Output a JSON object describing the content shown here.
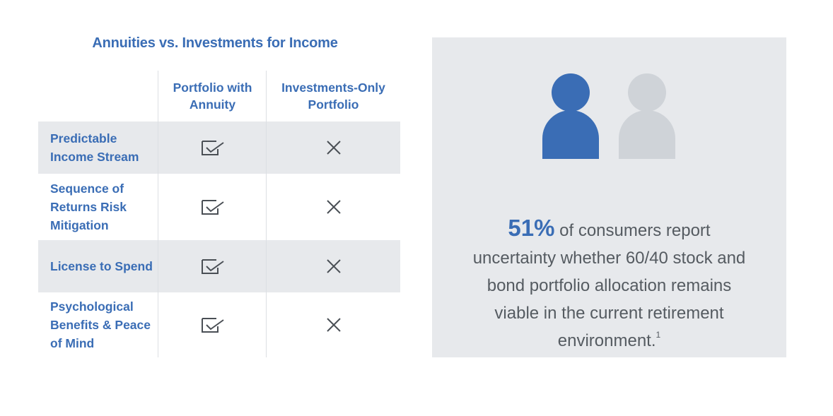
{
  "title": "Annuities vs. Investments for Income",
  "columns": [
    {
      "line1": "Portfolio with",
      "line2": "Annuity"
    },
    {
      "line1": "Investments-Only",
      "line2": "Portfolio"
    }
  ],
  "rows": [
    {
      "label": "Predictable Income Stream",
      "annuity": "check-icon",
      "investments": "x-icon",
      "shaded": true
    },
    {
      "label": "Sequence of Returns Risk Mitigation",
      "annuity": "check-icon",
      "investments": "x-icon",
      "shaded": false
    },
    {
      "label": "License to Spend",
      "annuity": "check-icon",
      "investments": "x-icon",
      "shaded": true
    },
    {
      "label": "Psychological Benefits & Peace of Mind",
      "annuity": "check-icon",
      "investments": "x-icon",
      "shaded": false
    }
  ],
  "stat": {
    "percent": "51%",
    "text": " of consumers report uncertainty whether 60/40 stock and bond portfolio allocation remains viable in the current retirement environment.",
    "footnote": "1"
  },
  "colors": {
    "accent": "#3a6db5",
    "panel": "#e7e9ec",
    "person_primary": "#3a6db5",
    "person_secondary": "#cfd3d8",
    "icon": "#4a4f55"
  },
  "icons": [
    "person-blue-icon",
    "person-gray-icon"
  ]
}
